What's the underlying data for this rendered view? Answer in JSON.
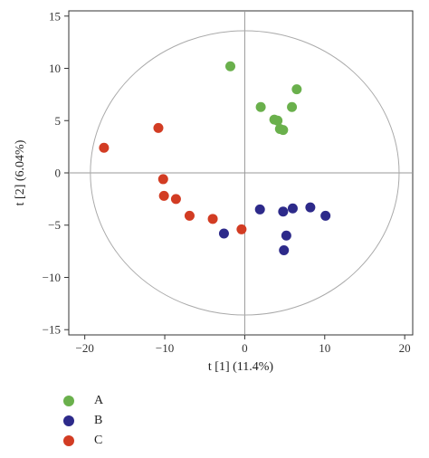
{
  "chart_data": {
    "type": "scatter",
    "xlabel": "t [1] (11.4%)",
    "ylabel": "t [2] (6.04%)",
    "xlim": [
      -22,
      21
    ],
    "ylim": [
      -15.5,
      15.5
    ],
    "x_ticks": [
      -20,
      -10,
      0,
      10,
      20
    ],
    "y_ticks": [
      -15,
      -10,
      -5,
      0,
      5,
      10,
      15
    ],
    "grid": false,
    "reference_lines": [
      0
    ],
    "ellipse": {
      "center": [
        0,
        0
      ],
      "rx": 19.3,
      "ry": 13.6,
      "color": "#aaaaaa"
    },
    "legend_position": "bottom-left",
    "series": [
      {
        "name": "A",
        "color": "#6ab04c",
        "points": [
          [
            -1.8,
            10.2
          ],
          [
            6.5,
            8.0
          ],
          [
            2.0,
            6.3
          ],
          [
            5.9,
            6.3
          ],
          [
            3.7,
            5.1
          ],
          [
            4.1,
            5.0
          ],
          [
            4.4,
            4.2
          ],
          [
            4.8,
            4.1
          ]
        ]
      },
      {
        "name": "B",
        "color": "#2d2a8a",
        "points": [
          [
            1.9,
            -3.5
          ],
          [
            4.8,
            -3.7
          ],
          [
            6.0,
            -3.4
          ],
          [
            8.2,
            -3.3
          ],
          [
            10.1,
            -4.1
          ],
          [
            -2.6,
            -5.8
          ],
          [
            5.2,
            -6.0
          ],
          [
            4.9,
            -7.4
          ]
        ]
      },
      {
        "name": "C",
        "color": "#d23c23",
        "points": [
          [
            -17.6,
            2.4
          ],
          [
            -10.8,
            4.3
          ],
          [
            -10.2,
            -0.6
          ],
          [
            -10.1,
            -2.2
          ],
          [
            -8.6,
            -2.5
          ],
          [
            -6.9,
            -4.1
          ],
          [
            -4.0,
            -4.4
          ],
          [
            -0.4,
            -5.4
          ]
        ]
      }
    ]
  }
}
